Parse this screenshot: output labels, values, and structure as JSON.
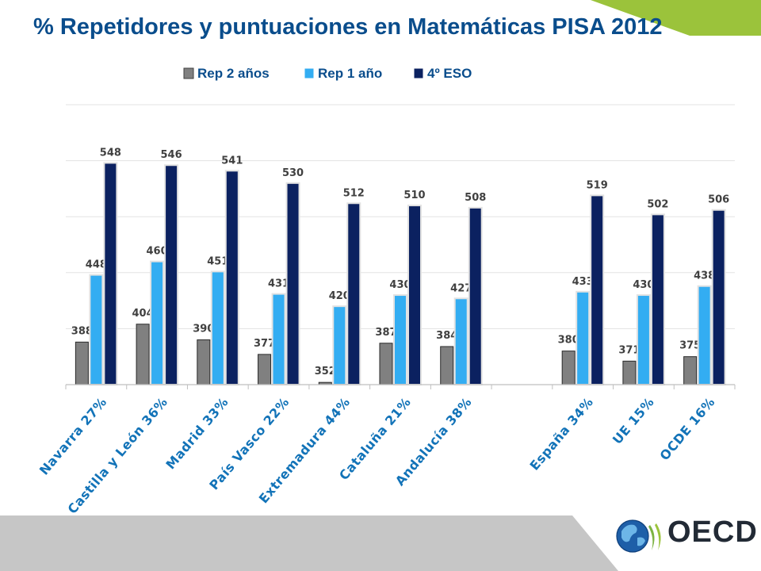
{
  "title": "% Repetidores y puntuaciones en Matemáticas PISA 2012",
  "logo_text": "OECD",
  "colors": {
    "title": "#0a4d8c",
    "accent_green": "#9bc33b",
    "band_gray": "#c6c6c6",
    "label_blue": "#1273b8"
  },
  "chart_data": {
    "type": "bar",
    "categories": [
      "Navarra 27%",
      "Castilla y León 36%",
      "Madrid 33%",
      "País Vasco 22%",
      "Extremadura 44%",
      "Cataluña 21%",
      "Andalucía 38%",
      "",
      "España 34%",
      "UE 15%",
      "OCDE 16%"
    ],
    "series": [
      {
        "name": "Rep 2 años",
        "color": "#808080",
        "values": [
          388,
          404,
          390,
          377,
          352,
          387,
          384,
          null,
          380,
          371,
          375
        ]
      },
      {
        "name": "Rep 1 año",
        "color": "#33adf2",
        "values": [
          448,
          460,
          451,
          431,
          420,
          430,
          427,
          null,
          433,
          430,
          438
        ]
      },
      {
        "name": "4º ESO",
        "color": "#0b2160",
        "values": [
          548,
          546,
          541,
          530,
          512,
          510,
          508,
          null,
          519,
          502,
          506
        ]
      }
    ],
    "ylim": [
      350,
      600
    ],
    "grid": true,
    "legend_position": "top-center",
    "data_labels": true
  }
}
